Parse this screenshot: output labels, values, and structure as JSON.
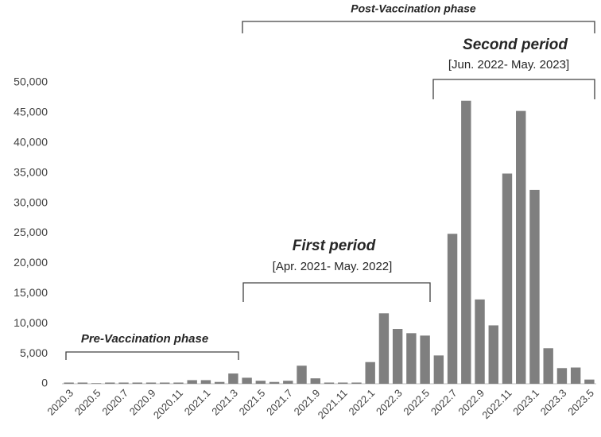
{
  "chart_data": {
    "type": "bar",
    "categories": [
      "2020.3",
      null,
      "2020.5",
      null,
      "2020.7",
      null,
      "2020.9",
      null,
      "2020.11",
      null,
      "2021.1",
      null,
      "2021.3",
      null,
      "2021.5",
      null,
      "2021.7",
      null,
      "2021.9",
      null,
      "2021.11",
      null,
      "2022.1",
      null,
      "2022.3",
      null,
      "2022.5",
      null,
      "2022.7",
      null,
      "2022.9",
      null,
      "2022.11",
      null,
      "2023.1",
      null,
      "2023.3",
      null,
      "2023.5"
    ],
    "values": [
      200,
      200,
      100,
      200,
      200,
      200,
      200,
      200,
      200,
      600,
      600,
      300,
      1700,
      1000,
      500,
      300,
      500,
      3000,
      900,
      200,
      200,
      200,
      3600,
      11700,
      9100,
      8400,
      8000,
      4700,
      24900,
      47000,
      14000,
      9700,
      34900,
      45300,
      32200,
      5900,
      2600,
      2700,
      700
    ],
    "color": "#7f7f7f",
    "ylim": [
      0,
      50000
    ],
    "yticks": [
      0,
      {
        "value": 5000,
        "label": "5,000"
      },
      {
        "value": 10000,
        "label": "10,000"
      },
      {
        "value": 15000,
        "label": "15,000"
      },
      {
        "value": 20000,
        "label": "20,000"
      },
      {
        "value": 25000,
        "label": "25,000"
      },
      {
        "value": 30000,
        "label": "30,000"
      },
      {
        "value": 35000,
        "label": "35,000"
      },
      {
        "value": 40000,
        "label": "40,000"
      },
      {
        "value": 45000,
        "label": "45,000"
      },
      {
        "value": 50000,
        "label": "50,000"
      }
    ],
    "grid": false,
    "annotations": [
      "Post-Vaccination phase",
      "Second period",
      "[Jun. 2022- May. 2023]",
      "First period",
      "[Apr. 2021- May. 2022]",
      "Pre-Vaccination phase"
    ]
  }
}
